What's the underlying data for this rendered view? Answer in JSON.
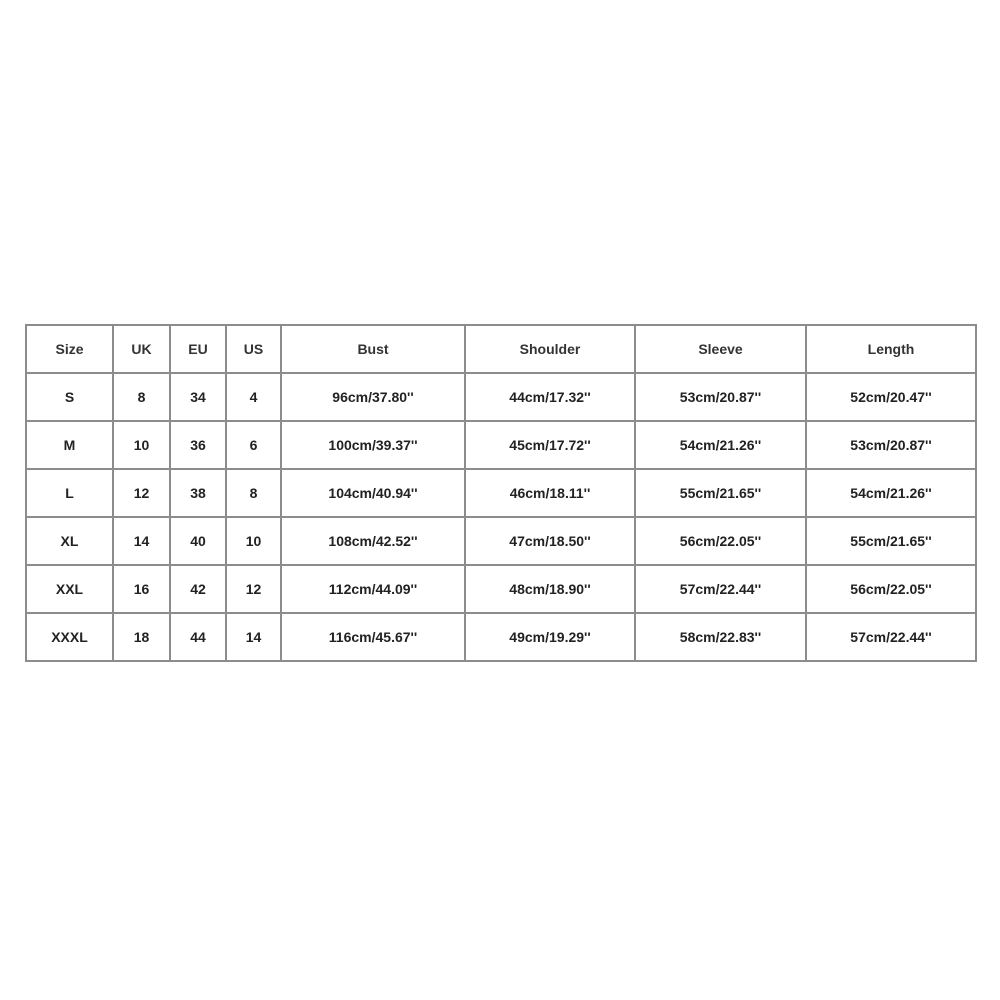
{
  "table": {
    "header": [
      "Size",
      "UK",
      "EU",
      "US",
      "Bust",
      "Shoulder",
      "Sleeve",
      "Length"
    ],
    "rows": [
      [
        "S",
        "8",
        "34",
        "4",
        "96cm/37.80''",
        "44cm/17.32''",
        "53cm/20.87''",
        "52cm/20.47''"
      ],
      [
        "M",
        "10",
        "36",
        "6",
        "100cm/39.37''",
        "45cm/17.72''",
        "54cm/21.26''",
        "53cm/20.87''"
      ],
      [
        "L",
        "12",
        "38",
        "8",
        "104cm/40.94''",
        "46cm/18.11''",
        "55cm/21.65''",
        "54cm/21.26''"
      ],
      [
        "XL",
        "14",
        "40",
        "10",
        "108cm/42.52''",
        "47cm/18.50''",
        "56cm/22.05''",
        "55cm/21.65''"
      ],
      [
        "XXL",
        "16",
        "42",
        "12",
        "112cm/44.09''",
        "48cm/18.90''",
        "57cm/22.44''",
        "56cm/22.05''"
      ],
      [
        "XXXL",
        "18",
        "44",
        "14",
        "116cm/45.67''",
        "49cm/19.29''",
        "58cm/22.83''",
        "57cm/22.44''"
      ]
    ]
  }
}
